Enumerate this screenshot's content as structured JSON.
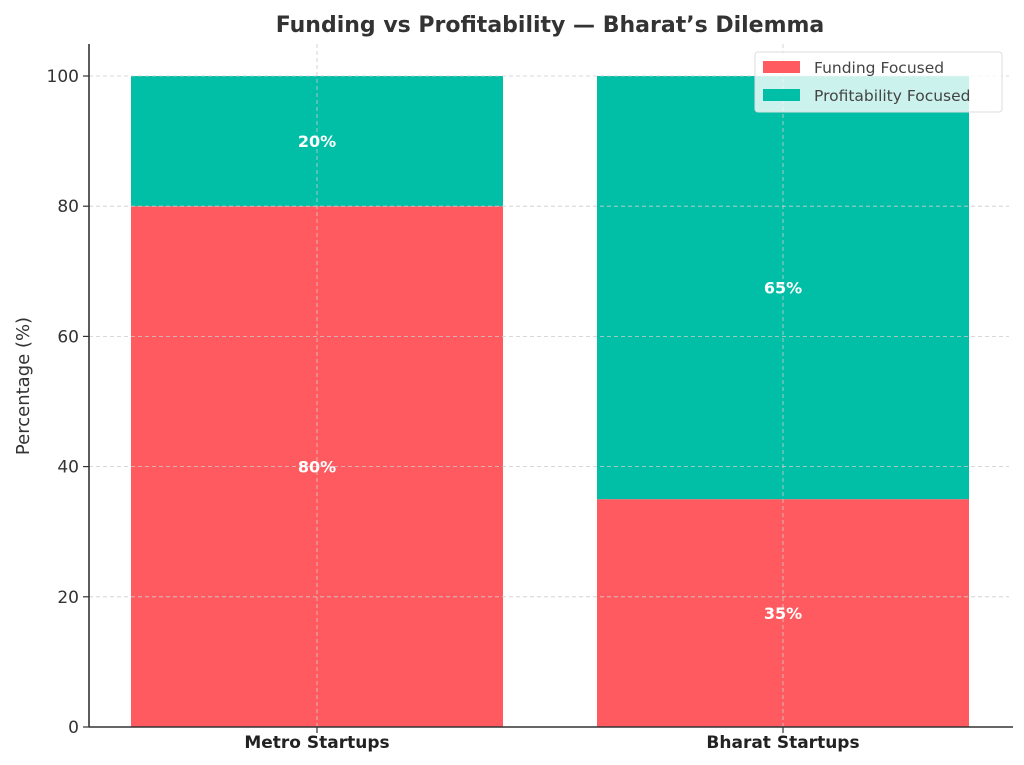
{
  "chart_data": {
    "type": "bar",
    "stacked": true,
    "title": "Funding vs Profitability — Bharat’s Dilemma",
    "xlabel": "",
    "ylabel": "Percentage (%)",
    "ylim": [
      0,
      105
    ],
    "yticks": [
      0,
      20,
      40,
      60,
      80,
      100
    ],
    "grid": true,
    "legend_position": "top-right",
    "categories": [
      "Metro Startups",
      "Bharat Startups"
    ],
    "series": [
      {
        "name": "Funding Focused",
        "color": "#ff5a5f",
        "values": [
          80,
          35
        ],
        "labels": [
          "80%",
          "35%"
        ]
      },
      {
        "name": "Profitability Focused",
        "color": "#00bfa6",
        "values": [
          20,
          65
        ],
        "labels": [
          "20%",
          "65%"
        ]
      }
    ]
  }
}
